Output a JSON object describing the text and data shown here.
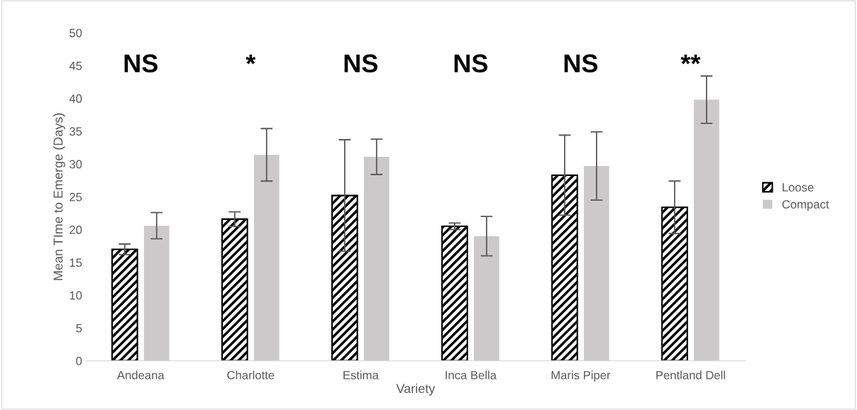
{
  "chart_data": {
    "type": "bar",
    "categories": [
      "Andeana",
      "Charlotte",
      "Estima",
      "Inca Bella",
      "Maris Piper",
      "Pentland Dell"
    ],
    "series": [
      {
        "name": "Loose",
        "color": "#000000",
        "values": [
          17.0,
          21.6,
          25.2,
          20.5,
          28.3,
          23.4
        ],
        "errors": [
          0.8,
          1.1,
          8.5,
          0.5,
          6.1,
          4.0
        ]
      },
      {
        "name": "Compact",
        "color": "#cbc9ca",
        "values": [
          20.6,
          31.4,
          31.1,
          19.0,
          29.7,
          39.8
        ],
        "errors": [
          2.0,
          4.0,
          2.7,
          3.0,
          5.2,
          3.6
        ]
      }
    ],
    "xlabel": "Variety",
    "ylabel": "Mean TIme to Emerge (Days)",
    "ylim": [
      0,
      50
    ],
    "yticks": [
      0,
      5,
      10,
      15,
      20,
      25,
      30,
      35,
      40,
      45,
      50
    ],
    "annotations": [
      "NS",
      "*",
      "NS",
      "NS",
      "NS",
      "**"
    ],
    "grid": false,
    "legend": "right"
  }
}
